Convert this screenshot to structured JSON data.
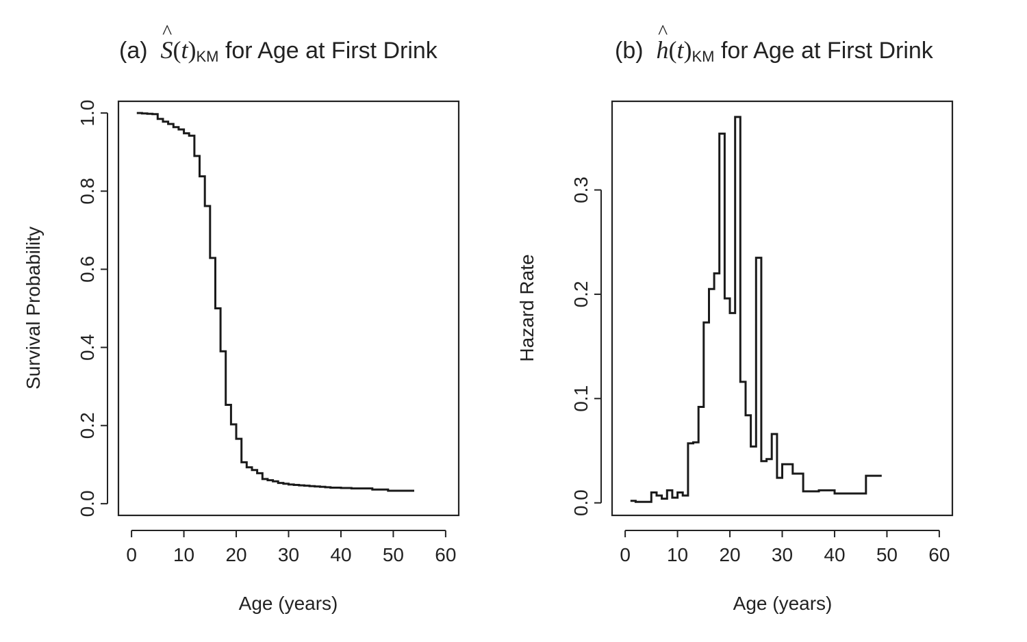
{
  "chart_data": [
    {
      "type": "line",
      "step": "post",
      "title": {
        "prefix": "(a)",
        "symbol": "S",
        "hat": "^",
        "open": "(",
        "arg": "t",
        "close": ")",
        "subscript": "KM",
        "suffix": "for Age at First Drink"
      },
      "xlabel": "Age (years)",
      "ylabel": "Survival Probability",
      "xlim": [
        -2.5,
        62.5
      ],
      "ylim": [
        -0.03,
        1.03
      ],
      "xticks": [
        "0",
        "10",
        "20",
        "30",
        "40",
        "50",
        "60"
      ],
      "yticks": [
        "0.0",
        "0.2",
        "0.4",
        "0.6",
        "0.8",
        "1.0"
      ],
      "x": [
        1,
        2,
        3,
        4,
        5,
        6,
        7,
        8,
        9,
        10,
        11,
        12,
        13,
        14,
        15,
        16,
        17,
        18,
        19,
        20,
        21,
        22,
        23,
        24,
        25,
        26,
        27,
        28,
        29,
        30,
        31,
        32,
        33,
        34,
        35,
        36,
        37,
        38,
        39,
        40,
        42,
        44,
        46,
        49,
        54
      ],
      "y": [
        1.0,
        0.999,
        0.998,
        0.997,
        0.985,
        0.978,
        0.972,
        0.964,
        0.958,
        0.948,
        0.942,
        0.89,
        0.838,
        0.762,
        0.629,
        0.5,
        0.39,
        0.253,
        0.203,
        0.166,
        0.106,
        0.093,
        0.086,
        0.078,
        0.063,
        0.06,
        0.057,
        0.053,
        0.051,
        0.049,
        0.048,
        0.047,
        0.046,
        0.045,
        0.044,
        0.043,
        0.042,
        0.041,
        0.041,
        0.04,
        0.039,
        0.039,
        0.036,
        0.033,
        0.033
      ]
    },
    {
      "type": "line",
      "step": "post",
      "title": {
        "prefix": "(b)",
        "symbol": "h",
        "hat": "^",
        "open": "(",
        "arg": "t",
        "close": ")",
        "subscript": "KM",
        "suffix": "for Age at First Drink"
      },
      "xlabel": "Age (years)",
      "ylabel": "Hazard Rate",
      "xlim": [
        -2.5,
        62.5
      ],
      "ylim": [
        -0.012,
        0.385
      ],
      "xticks": [
        "0",
        "10",
        "20",
        "30",
        "40",
        "50",
        "60"
      ],
      "yticks": [
        "0.0",
        "0.1",
        "0.2",
        "0.3"
      ],
      "x": [
        1,
        2,
        5,
        6,
        7,
        8,
        9,
        10,
        11,
        12,
        13,
        14,
        15,
        16,
        17,
        18,
        19,
        20,
        21,
        22,
        23,
        24,
        25,
        26,
        27,
        28,
        29,
        30,
        32,
        34,
        37,
        40,
        46,
        49
      ],
      "y": [
        0.002,
        0.001,
        0.01,
        0.007,
        0.004,
        0.012,
        0.005,
        0.01,
        0.007,
        0.057,
        0.058,
        0.092,
        0.173,
        0.205,
        0.22,
        0.354,
        0.196,
        0.182,
        0.37,
        0.116,
        0.084,
        0.054,
        0.235,
        0.04,
        0.042,
        0.066,
        0.024,
        0.037,
        0.028,
        0.011,
        0.012,
        0.009,
        0.026,
        0.026
      ]
    }
  ]
}
